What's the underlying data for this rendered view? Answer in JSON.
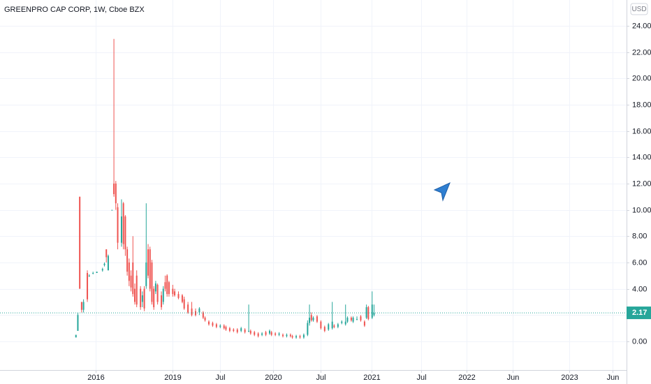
{
  "chart_data": {
    "type": "candlestick",
    "title": "GREENPRO CAP CORP, 1W, Cboe BZX",
    "currency": "USD",
    "up_color": "#26a69a",
    "down_color": "#ef5350",
    "grid": true,
    "x": [
      40,
      41,
      42,
      43,
      44,
      46,
      47,
      49,
      51,
      54,
      55,
      56,
      57,
      59,
      60,
      61,
      62,
      64,
      65,
      66,
      67,
      68,
      69,
      70,
      71,
      72,
      74,
      75,
      76,
      77,
      78,
      79,
      80,
      81,
      82,
      83,
      85,
      86,
      87,
      88,
      89,
      91,
      92,
      94,
      96,
      97,
      99,
      101,
      103,
      105,
      107,
      108,
      110,
      112,
      114,
      116,
      118,
      119,
      121,
      123,
      125,
      127,
      129,
      131,
      132,
      134,
      136,
      138,
      140,
      142,
      143,
      145,
      147,
      149,
      151,
      153,
      154,
      156,
      158,
      160,
      162,
      163,
      164,
      165,
      167,
      169,
      171,
      173,
      175,
      176,
      178,
      180,
      182,
      183,
      185,
      186,
      188,
      190,
      192,
      193,
      194,
      196,
      197
    ],
    "open": [
      0.3,
      0.8,
      11.0,
      3.0,
      2.4,
      5.2,
      5.0,
      5.2,
      5.2,
      5.4,
      5.8,
      7.0,
      5.4,
      10.0,
      12.0,
      12.0,
      10.2,
      7.5,
      10.5,
      9.5,
      7.0,
      6.0,
      5.0,
      6.0,
      4.0,
      5.0,
      4.0,
      3.0,
      4.0,
      4.2,
      7.0,
      7.0,
      6.0,
      4.0,
      3.8,
      4.3,
      3.5,
      3.0,
      4.5,
      5.0,
      4.5,
      4.0,
      3.8,
      3.6,
      3.5,
      3.2,
      2.8,
      2.5,
      2.3,
      2.2,
      2.2,
      1.8,
      1.5,
      1.4,
      1.3,
      1.1,
      1.2,
      1.1,
      1.0,
      0.9,
      0.9,
      0.8,
      0.9,
      0.8,
      0.8,
      0.7,
      0.6,
      0.5,
      0.7,
      0.6,
      0.7,
      0.6,
      0.5,
      0.5,
      0.4,
      0.5,
      0.4,
      0.3,
      0.4,
      0.3,
      0.5,
      1.4,
      2.0,
      1.6,
      1.9,
      1.5,
      1.1,
      0.9,
      1.0,
      1.2,
      1.1,
      1.4,
      1.3,
      1.5,
      1.8,
      1.5,
      1.7,
      1.9,
      1.5,
      1.8,
      2.6,
      1.8,
      2.0
    ],
    "high": [
      0.5,
      2.2,
      11.0,
      3.0,
      3.2,
      5.4,
      5.1,
      5.3,
      5.3,
      5.6,
      6.0,
      7.0,
      6.6,
      10.0,
      23.0,
      12.2,
      10.5,
      10.8,
      10.6,
      9.6,
      7.2,
      6.3,
      5.4,
      8.0,
      4.4,
      5.4,
      4.2,
      3.8,
      4.2,
      10.5,
      7.4,
      7.2,
      6.2,
      4.2,
      4.6,
      4.4,
      3.8,
      4.2,
      5.0,
      5.1,
      4.6,
      4.3,
      4.0,
      3.8,
      3.6,
      3.4,
      3.0,
      3.0,
      2.5,
      2.6,
      2.3,
      1.9,
      1.6,
      1.5,
      1.4,
      1.3,
      1.3,
      1.2,
      1.1,
      1.0,
      1.0,
      1.1,
      1.0,
      2.8,
      0.9,
      0.8,
      0.7,
      0.7,
      0.8,
      0.9,
      0.8,
      0.7,
      0.7,
      0.6,
      0.6,
      0.6,
      0.5,
      0.5,
      0.5,
      0.6,
      1.6,
      2.8,
      2.2,
      1.9,
      2.0,
      1.6,
      1.2,
      1.4,
      3.0,
      1.3,
      1.4,
      1.6,
      2.8,
      1.9,
      1.9,
      1.9,
      1.9,
      2.0,
      1.6,
      2.8,
      2.7,
      3.8,
      2.8
    ],
    "low": [
      0.3,
      0.8,
      4.0,
      2.2,
      2.2,
      3.0,
      4.9,
      5.1,
      5.2,
      5.3,
      5.7,
      6.0,
      5.4,
      10.0,
      11.0,
      10.0,
      7.0,
      7.2,
      7.0,
      6.5,
      5.0,
      4.2,
      3.8,
      3.4,
      2.8,
      2.6,
      2.4,
      2.6,
      2.3,
      4.0,
      4.8,
      3.8,
      2.8,
      2.4,
      3.6,
      2.8,
      2.4,
      2.8,
      3.8,
      3.4,
      3.4,
      3.4,
      3.4,
      3.2,
      2.9,
      2.4,
      2.1,
      1.9,
      1.9,
      2.0,
      1.7,
      1.5,
      1.2,
      1.1,
      1.0,
      1.0,
      0.9,
      0.8,
      0.7,
      0.7,
      0.6,
      0.7,
      0.6,
      0.7,
      0.5,
      0.4,
      0.3,
      0.4,
      0.4,
      0.5,
      0.4,
      0.4,
      0.4,
      0.3,
      0.3,
      0.3,
      0.2,
      0.2,
      0.2,
      0.2,
      0.4,
      1.2,
      1.5,
      1.5,
      1.4,
      0.9,
      0.7,
      0.8,
      0.9,
      1.0,
      1.0,
      1.3,
      1.2,
      1.4,
      1.5,
      1.4,
      1.6,
      1.5,
      1.1,
      1.7,
      1.6,
      1.7,
      1.9
    ],
    "close": [
      0.5,
      2.0,
      4.0,
      2.4,
      3.0,
      3.2,
      5.0,
      5.2,
      5.3,
      5.5,
      5.9,
      6.4,
      6.5,
      10.0,
      11.2,
      10.5,
      7.5,
      9.5,
      7.4,
      7.0,
      5.3,
      4.6,
      4.1,
      3.6,
      3.0,
      2.8,
      2.6,
      3.5,
      2.5,
      6.0,
      5.0,
      4.0,
      3.0,
      2.6,
      4.4,
      3.0,
      2.6,
      4.0,
      4.0,
      3.6,
      3.6,
      3.6,
      3.5,
      3.3,
      3.0,
      2.5,
      2.2,
      2.0,
      2.0,
      2.5,
      1.8,
      1.6,
      1.3,
      1.2,
      1.1,
      1.2,
      1.0,
      0.9,
      0.8,
      0.8,
      0.7,
      1.0,
      0.7,
      0.8,
      0.6,
      0.5,
      0.4,
      0.6,
      0.5,
      0.8,
      0.5,
      0.5,
      0.6,
      0.4,
      0.5,
      0.4,
      0.3,
      0.4,
      0.3,
      0.5,
      1.4,
      1.8,
      1.6,
      1.8,
      1.5,
      1.0,
      0.8,
      1.3,
      1.5,
      1.1,
      1.3,
      1.5,
      1.5,
      1.8,
      1.6,
      1.8,
      1.7,
      1.6,
      1.2,
      2.6,
      1.7,
      2.8,
      2.17
    ],
    "xlim": [
      0,
      330
    ],
    "ylim": [
      -2.18,
      25.96
    ],
    "yticks": [
      {
        "value": 0,
        "label": "0.00"
      },
      {
        "value": 2,
        "label": "2.00"
      },
      {
        "value": 4,
        "label": "4.00"
      },
      {
        "value": 6,
        "label": "6.00"
      },
      {
        "value": 8,
        "label": "8.00"
      },
      {
        "value": 10,
        "label": "10.00"
      },
      {
        "value": 12,
        "label": "12.00"
      },
      {
        "value": 14,
        "label": "14.00"
      },
      {
        "value": 16,
        "label": "16.00"
      },
      {
        "value": 18,
        "label": "18.00"
      },
      {
        "value": 20,
        "label": "20.00"
      },
      {
        "value": 22,
        "label": "22.00"
      },
      {
        "value": 24,
        "label": "24.00"
      }
    ],
    "xticks": [
      {
        "value": 50.4,
        "label": "2016"
      },
      {
        "value": 90.9,
        "label": "2019"
      },
      {
        "value": 116,
        "label": "Jul"
      },
      {
        "value": 143.9,
        "label": "2020"
      },
      {
        "value": 168.9,
        "label": "Jul"
      },
      {
        "value": 195.7,
        "label": "2021"
      },
      {
        "value": 221.9,
        "label": "Jul"
      },
      {
        "value": 245.8,
        "label": "2022"
      },
      {
        "value": 270,
        "label": "Jun"
      },
      {
        "value": 299.9,
        "label": "2023"
      },
      {
        "value": 322.7,
        "label": "Jun"
      }
    ]
  }
}
